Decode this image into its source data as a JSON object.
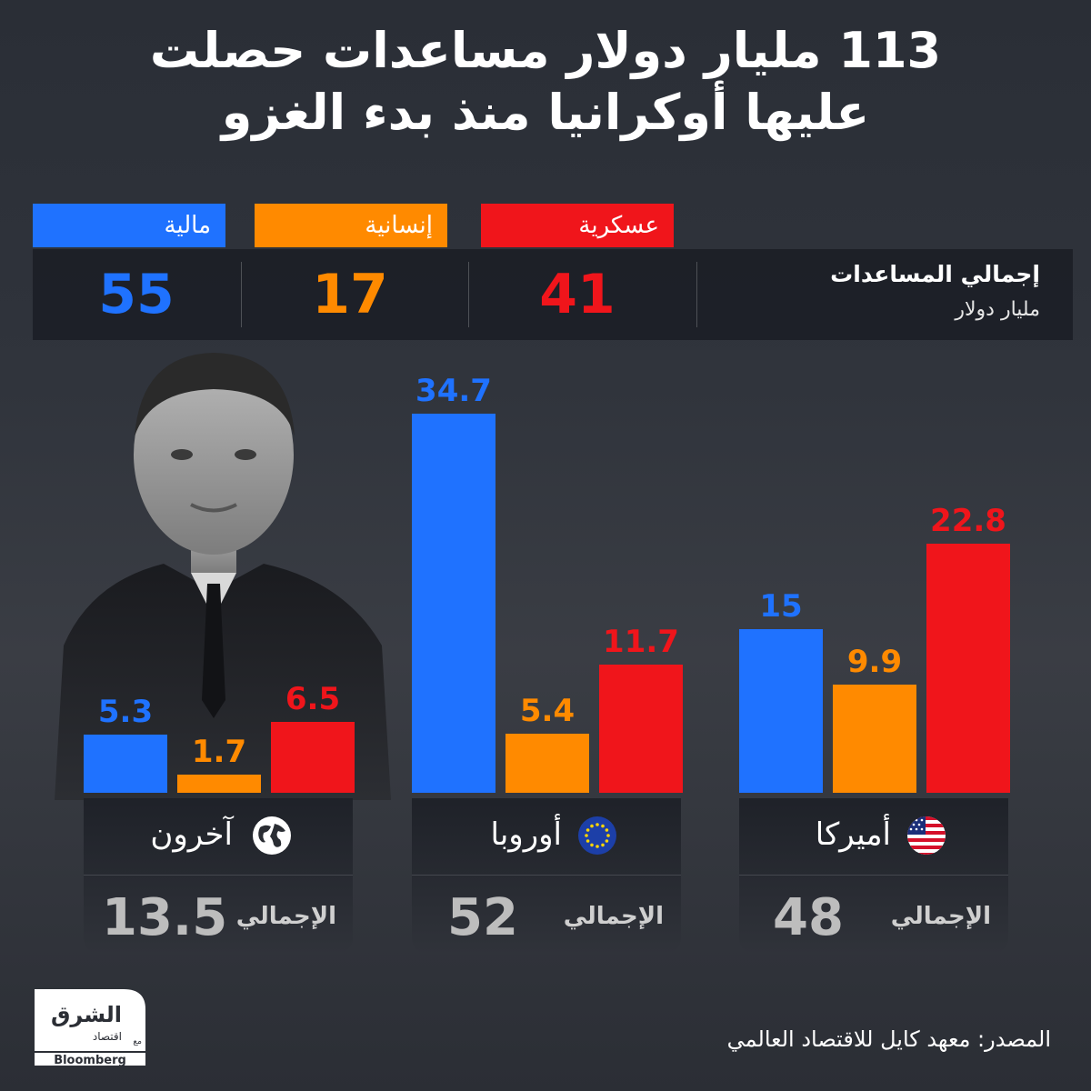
{
  "title_line1": "113 مليار دولار مساعدات حصلت",
  "title_line2": "عليها أوكرانيا منذ بدء الغزو",
  "legend": [
    {
      "label": "مالية",
      "color": "#1f72ff"
    },
    {
      "label": "إنسانية",
      "color": "#ff8a00"
    },
    {
      "label": "عسكرية",
      "color": "#f0151b"
    }
  ],
  "totals_strip": {
    "label": "إجمالي المساعدات",
    "unit": "مليار دولار",
    "values": [
      {
        "value": "55",
        "color": "#1f72ff"
      },
      {
        "value": "17",
        "color": "#ff8a00"
      },
      {
        "value": "41",
        "color": "#f0151b"
      }
    ]
  },
  "chart_data": {
    "type": "bar",
    "categories": [
      "آخرون",
      "أوروبا",
      "أميركا"
    ],
    "series": [
      {
        "name": "مالية",
        "values": [
          5.3,
          34.7,
          15
        ],
        "color": "#1f72ff"
      },
      {
        "name": "إنسانية",
        "values": [
          1.7,
          5.4,
          9.9
        ],
        "color": "#ff8a00"
      },
      {
        "name": "عسكرية",
        "values": [
          6.5,
          11.7,
          22.8
        ],
        "color": "#f0151b"
      }
    ],
    "value_labels": [
      [
        "5.3",
        "34.7",
        "15"
      ],
      [
        "1.7",
        "5.4",
        "9.9"
      ],
      [
        "6.5",
        "11.7",
        "22.8"
      ]
    ],
    "grid": false
  },
  "regions": [
    {
      "name": "آخرون",
      "total_word": "الإجمالي",
      "total": "13.5",
      "icon": "globe-icon"
    },
    {
      "name": "أوروبا",
      "total_word": "الإجمالي",
      "total": "52",
      "icon": "eu-flag-icon"
    },
    {
      "name": "أميركا",
      "total_word": "الإجمالي",
      "total": "48",
      "icon": "us-flag-icon"
    }
  ],
  "logo": {
    "brand": "الشرق",
    "sub": "اقتصاد",
    "with": "مع",
    "partner": "Bloomberg"
  },
  "source": "المصدر: معهد كايل للاقتصاد العالمي"
}
